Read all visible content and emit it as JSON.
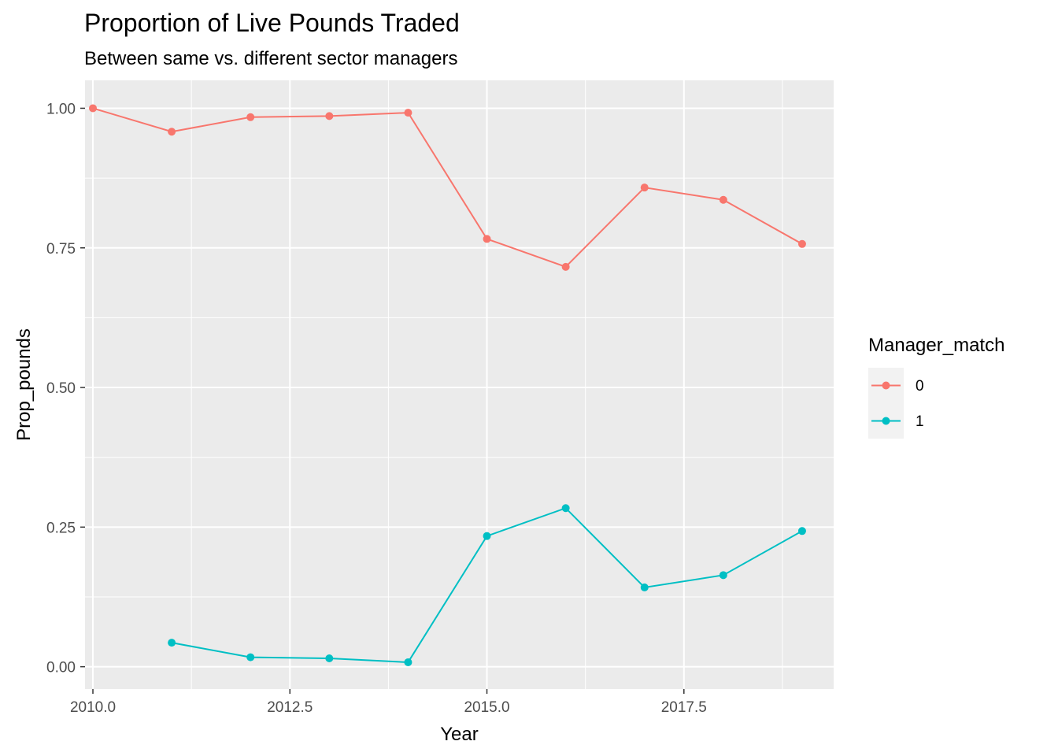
{
  "chart_data": {
    "type": "line",
    "title": "Proportion of Live Pounds Traded",
    "subtitle": "Between same vs. different sector managers",
    "xlabel": "Year",
    "ylabel": "Prop_pounds",
    "xlim": [
      2009.9,
      2019.4
    ],
    "ylim": [
      -0.04,
      1.05
    ],
    "x_ticks": [
      2010.0,
      2012.5,
      2015.0,
      2017.5
    ],
    "x_tick_labels": [
      "2010.0",
      "2012.5",
      "2015.0",
      "2017.5"
    ],
    "y_ticks": [
      0.0,
      0.25,
      0.5,
      0.75,
      1.0
    ],
    "y_tick_labels": [
      "0.00",
      "0.25",
      "0.50",
      "0.75",
      "1.00"
    ],
    "grid": true,
    "legend_title": "Manager_match",
    "legend_position": "right",
    "series": [
      {
        "name": "0",
        "color": "#F8766D",
        "x": [
          2010,
          2011,
          2012,
          2013,
          2014,
          2015,
          2016,
          2017,
          2018,
          2019
        ],
        "values": [
          1.0,
          0.958,
          0.984,
          0.986,
          0.992,
          0.766,
          0.716,
          0.858,
          0.836,
          0.757
        ]
      },
      {
        "name": "1",
        "color": "#00BFC4",
        "x": [
          2011,
          2012,
          2013,
          2014,
          2015,
          2016,
          2017,
          2018,
          2019
        ],
        "values": [
          0.043,
          0.017,
          0.015,
          0.008,
          0.234,
          0.284,
          0.142,
          0.164,
          0.243
        ]
      }
    ]
  }
}
